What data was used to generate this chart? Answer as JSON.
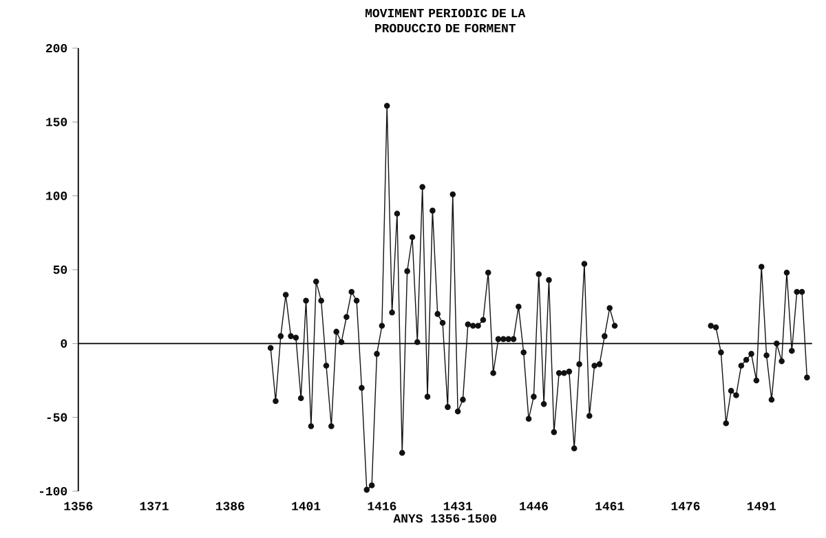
{
  "chart_data": {
    "type": "line",
    "title": "MOVIMENT PERIODIC DE LA PRODUCCIO DE FORMENT",
    "xlabel": "ANYS 1356-1500",
    "x": [
      1394,
      1395,
      1396,
      1397,
      1398,
      1399,
      1400,
      1401,
      1402,
      1403,
      1404,
      1405,
      1406,
      1407,
      1408,
      1409,
      1410,
      1411,
      1412,
      1413,
      1414,
      1415,
      1416,
      1417,
      1418,
      1419,
      1420,
      1421,
      1422,
      1423,
      1424,
      1425,
      1426,
      1427,
      1428,
      1429,
      1430,
      1431,
      1432,
      1433,
      1434,
      1435,
      1436,
      1437,
      1438,
      1439,
      1440,
      1441,
      1442,
      1443,
      1444,
      1445,
      1446,
      1447,
      1448,
      1449,
      1450,
      1451,
      1452,
      1453,
      1454,
      1455,
      1456,
      1457,
      1458,
      1459,
      1460,
      1461,
      1462,
      1463,
      1481,
      1482,
      1483,
      1484,
      1485,
      1486,
      1487,
      1488,
      1489,
      1490,
      1491,
      1492,
      1493,
      1494,
      1495,
      1496,
      1497,
      1498,
      1499,
      1500
    ],
    "values": [
      -3,
      -39,
      5,
      33,
      5,
      4,
      -37,
      29,
      -56,
      42,
      29,
      -15,
      -56,
      8,
      1,
      18,
      35,
      29,
      -30,
      -99,
      -96,
      -7,
      12,
      161,
      21,
      88,
      -74,
      49,
      72,
      1,
      106,
      -36,
      90,
      20,
      14,
      -43,
      101,
      -46,
      -38,
      13,
      12,
      12,
      16,
      48,
      -20,
      3,
      3,
      3,
      3,
      25,
      -6,
      -51,
      -36,
      47,
      -41,
      43,
      -60,
      -20,
      -20,
      -19,
      -71,
      -14,
      54,
      -49,
      -15,
      -14,
      5,
      24,
      12,
      null,
      12,
      11,
      -6,
      -54,
      -32,
      -35,
      -15,
      -11,
      -7,
      -25,
      52,
      -8,
      -38,
      0,
      -12,
      48,
      -5,
      35,
      35,
      -23
    ],
    "color": "#111111",
    "marker": "circle",
    "line_style": "solid",
    "xlim": [
      1356,
      1501
    ],
    "ylim": [
      -100,
      200
    ],
    "xticks": [
      1356,
      1371,
      1386,
      1401,
      1416,
      1431,
      1446,
      1461,
      1476,
      1491
    ],
    "yticks": [
      -100,
      -50,
      0,
      50,
      100,
      150,
      200
    ],
    "ref_lines": [
      {
        "axis": "y",
        "value": 0
      }
    ]
  }
}
